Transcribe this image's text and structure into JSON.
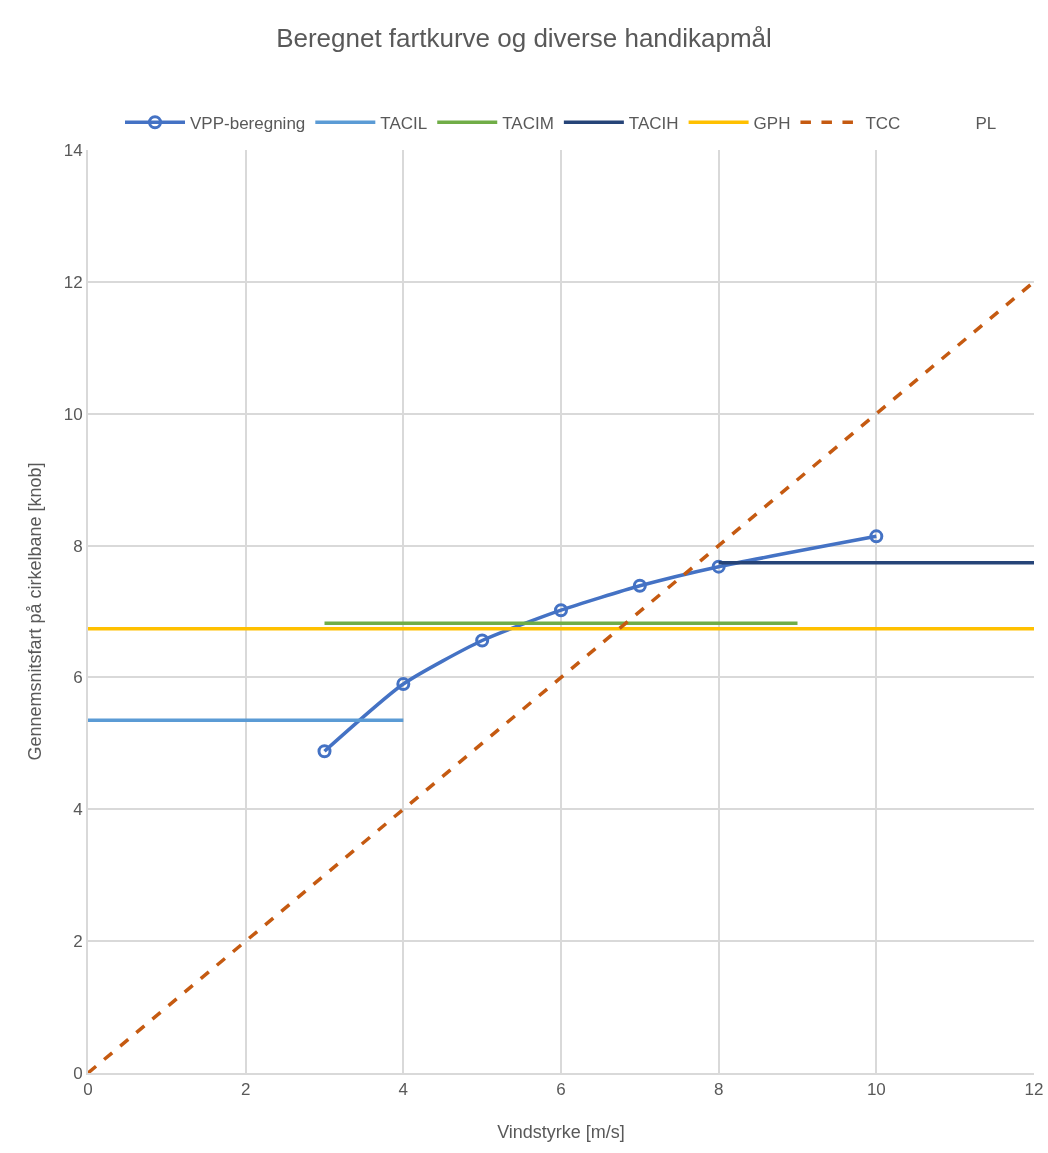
{
  "chart_data": {
    "type": "line",
    "title": "Beregnet fartkurve og diverse handikapmål",
    "xlabel": "Vindstyrke [m/s]",
    "ylabel": "Gennemsnitsfart på cirkelbane [knob]",
    "xlim": [
      0,
      12
    ],
    "xticks": [
      0,
      2,
      4,
      6,
      8,
      10,
      12
    ],
    "ylim": [
      0,
      14
    ],
    "yticks": [
      0,
      2,
      4,
      6,
      8,
      10,
      12,
      14
    ],
    "grid": true,
    "legend": "top",
    "series": [
      {
        "name": "VPP-beregning",
        "color": "#4472c4",
        "marker": "circle",
        "x": [
          3,
          4,
          5,
          6,
          7,
          8,
          10
        ],
        "values": [
          4.88,
          5.9,
          6.56,
          7.02,
          7.39,
          7.68,
          8.14
        ]
      },
      {
        "name": "TACIL",
        "color": "#5b9bd5",
        "x": [
          0,
          4
        ],
        "values": [
          5.35,
          5.35
        ]
      },
      {
        "name": "TACIM",
        "color": "#70ad47",
        "x": [
          3,
          9
        ],
        "values": [
          6.82,
          6.82
        ]
      },
      {
        "name": "TACIH",
        "color": "#264478",
        "x": [
          8,
          12
        ],
        "values": [
          7.74,
          7.74
        ]
      },
      {
        "name": "GPH",
        "color": "#ffc000",
        "x": [
          0,
          12
        ],
        "values": [
          6.74,
          6.74
        ]
      },
      {
        "name": "TCC",
        "color": "#c55a11",
        "line_style": "dashed",
        "x": [
          0,
          12
        ],
        "values": [
          0,
          12
        ]
      },
      {
        "name": "PL",
        "values": [
          null
        ]
      }
    ]
  }
}
